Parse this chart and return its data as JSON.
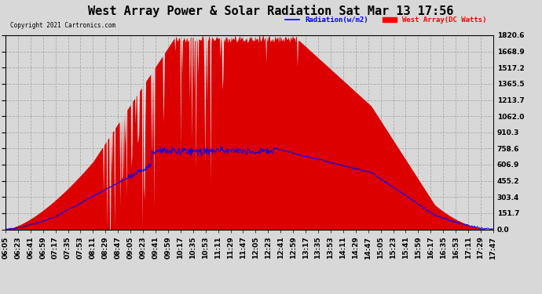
{
  "title": "West Array Power & Solar Radiation Sat Mar 13 17:56",
  "copyright": "Copyright 2021 Cartronics.com",
  "legend_radiation": "Radiation(w/m2)",
  "legend_west": "West Array(DC Watts)",
  "legend_radiation_color": "blue",
  "legend_west_color": "red",
  "ymin": 0.0,
  "ymax": 1820.6,
  "yticks": [
    0.0,
    151.7,
    303.4,
    455.2,
    606.9,
    758.6,
    910.3,
    1062.0,
    1213.7,
    1365.5,
    1517.2,
    1668.9,
    1820.6
  ],
  "background_color": "#d8d8d8",
  "plot_bg_color": "#d8d8d8",
  "grid_color": "#aaaaaa",
  "red_fill_color": "#dd0000",
  "blue_line_color": "blue",
  "title_fontsize": 11,
  "tick_fontsize": 6.5,
  "xlabel_rotation": 90
}
